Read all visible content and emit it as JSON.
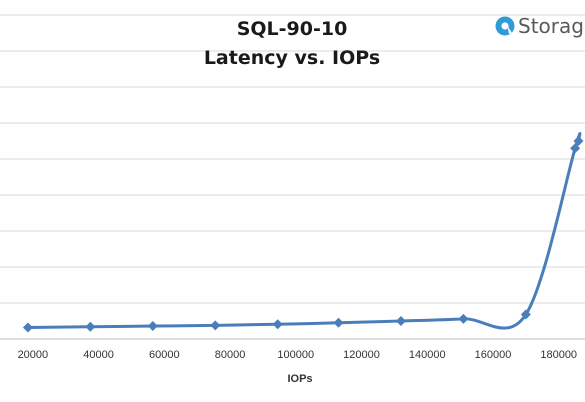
{
  "brand": {
    "logo_text": "Storage",
    "accent": "#2f9cd8"
  },
  "chart_data": {
    "type": "line",
    "title": "SQL-90-10",
    "subtitle": "Latency vs. IOPs",
    "xlabel": "IOPs",
    "ylabel": "",
    "xlim": [
      10000,
      188000
    ],
    "xticks": [
      20000,
      40000,
      60000,
      80000,
      100000,
      120000,
      140000,
      160000,
      180000
    ],
    "ylim": [
      0,
      90
    ],
    "ygrid": [
      0,
      10,
      20,
      30,
      40,
      50,
      60,
      70,
      80,
      90
    ],
    "grid": true,
    "legend": "none",
    "series": [
      {
        "color": "#4a7ebb",
        "marker": "diamond",
        "x": [
          18500,
          37500,
          56500,
          75500,
          94500,
          113000,
          132000,
          151000,
          170000,
          185000,
          186000
        ],
        "y": [
          3.2,
          3.4,
          3.6,
          3.8,
          4.1,
          4.5,
          5.0,
          5.6,
          6.8,
          53.0,
          55.0
        ]
      }
    ]
  }
}
